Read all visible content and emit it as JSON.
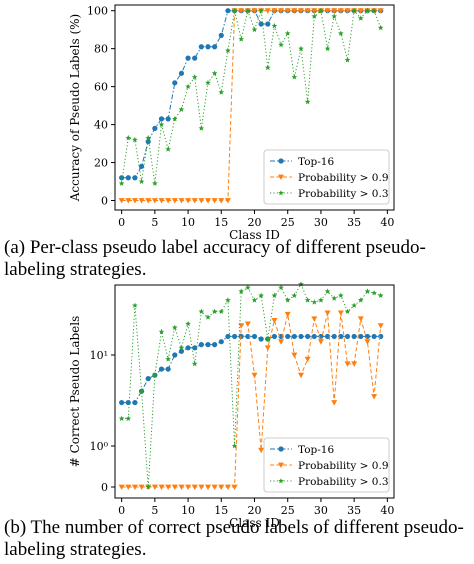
{
  "captions": {
    "a": "(a) Per-class pseudo label accuracy of different pseudo-labeling strategies.",
    "b": "(b) The number of correct pseudo labels of different pseudo-labeling strategies."
  },
  "colors": {
    "top16": "#1f77b4",
    "prob09": "#ff7f0e",
    "prob03": "#2ca02c"
  },
  "chart_data": [
    {
      "type": "line",
      "xlabel": "Class ID",
      "ylabel": "Accuracy of Pseudo Labels (%)",
      "xlim": [
        -1,
        41
      ],
      "ylim": [
        -5,
        103
      ],
      "xticks": [
        0,
        5,
        10,
        15,
        20,
        25,
        30,
        35,
        40
      ],
      "yticks": [
        0,
        20,
        40,
        60,
        80,
        100
      ],
      "grid": false,
      "legend_position": "lower-right",
      "x": [
        0,
        1,
        2,
        3,
        4,
        5,
        6,
        7,
        8,
        9,
        10,
        11,
        12,
        13,
        14,
        15,
        16,
        17,
        18,
        19,
        20,
        21,
        22,
        23,
        24,
        25,
        26,
        27,
        28,
        29,
        30,
        31,
        32,
        33,
        34,
        35,
        36,
        37,
        38,
        39
      ],
      "series": [
        {
          "name": "Top-16",
          "key": "top16",
          "marker": "o",
          "style": "dashdot",
          "values": [
            12,
            12,
            12,
            18,
            31,
            38,
            43,
            43,
            62,
            67,
            75,
            75,
            81,
            81,
            81,
            87,
            100,
            100,
            100,
            100,
            100,
            93,
            93,
            100,
            100,
            100,
            100,
            100,
            100,
            100,
            100,
            100,
            100,
            100,
            100,
            100,
            100,
            100,
            100,
            100
          ]
        },
        {
          "name": "Probability > 0.9",
          "key": "prob09",
          "marker": "v",
          "style": "dashed",
          "values": [
            0,
            0,
            0,
            0,
            0,
            0,
            0,
            0,
            0,
            0,
            0,
            0,
            0,
            0,
            0,
            0,
            0,
            100,
            100,
            100,
            100,
            100,
            100,
            100,
            100,
            100,
            100,
            100,
            100,
            100,
            100,
            100,
            100,
            100,
            100,
            100,
            100,
            100,
            100,
            100
          ]
        },
        {
          "name": "Probability > 0.3",
          "key": "prob03",
          "marker": "*",
          "style": "dotted",
          "values": [
            9,
            33,
            32,
            10,
            33,
            9,
            40,
            27,
            43,
            48,
            60,
            65,
            38,
            62,
            67,
            57,
            79,
            100,
            85,
            100,
            90,
            100,
            70,
            92,
            82,
            88,
            65,
            80,
            52,
            97,
            100,
            80,
            97,
            88,
            74,
            100,
            96,
            100,
            100,
            91
          ]
        }
      ]
    },
    {
      "type": "line",
      "xlabel": "Class ID",
      "ylabel": "# Correct Pseudo Labels",
      "xlim": [
        -1,
        41
      ],
      "yscale": "symlog",
      "xticks": [
        0,
        5,
        10,
        15,
        20,
        25,
        30,
        35,
        40
      ],
      "ytick_labels": [
        "0",
        "10⁰",
        "10¹"
      ],
      "grid": false,
      "legend_position": "lower-right",
      "x": [
        0,
        1,
        2,
        3,
        4,
        5,
        6,
        7,
        8,
        9,
        10,
        11,
        12,
        13,
        14,
        15,
        16,
        17,
        18,
        19,
        20,
        21,
        22,
        23,
        24,
        25,
        26,
        27,
        28,
        29,
        30,
        31,
        32,
        33,
        34,
        35,
        36,
        37,
        38,
        39
      ],
      "series": [
        {
          "name": "Top-16",
          "key": "top16",
          "marker": "o",
          "style": "dashdot",
          "values": [
            3,
            3,
            3,
            4,
            5.5,
            6,
            7,
            7,
            10,
            11,
            12,
            12,
            13,
            13,
            13,
            14,
            16,
            16,
            16,
            16,
            16,
            15,
            15,
            16,
            16,
            16,
            16,
            16,
            16,
            16,
            16,
            16,
            16,
            16,
            16,
            16,
            16,
            16,
            16,
            16
          ]
        },
        {
          "name": "Probability > 0.9",
          "key": "prob09",
          "marker": "v",
          "style": "dashed",
          "values": [
            0,
            0,
            0,
            0,
            0,
            0,
            0,
            0,
            0,
            0,
            0,
            0,
            0,
            0,
            0,
            0,
            0,
            0,
            21,
            22,
            6,
            0.9,
            12,
            24,
            14,
            28,
            10,
            6,
            9,
            25,
            14,
            29,
            3,
            29,
            8,
            8,
            25,
            14,
            3.5,
            21
          ]
        },
        {
          "name": "Probability > 0.3",
          "key": "prob03",
          "marker": "*",
          "style": "dotted",
          "values": [
            2,
            2,
            35,
            4,
            0,
            6,
            18,
            9,
            20,
            12,
            22,
            8,
            30,
            26,
            30,
            30,
            40,
            1,
            50,
            55,
            40,
            45,
            15,
            45,
            55,
            40,
            45,
            60,
            40,
            38,
            40,
            50,
            42,
            45,
            30,
            35,
            40,
            50,
            48,
            45
          ]
        }
      ]
    }
  ]
}
